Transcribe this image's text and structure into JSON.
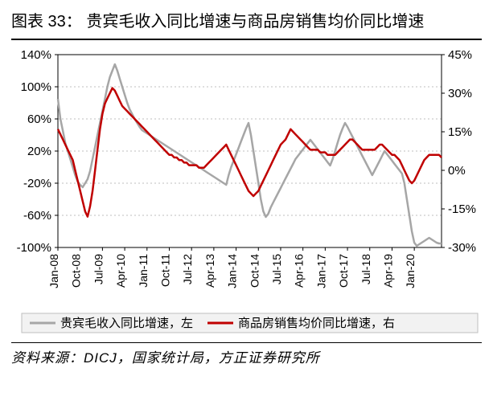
{
  "title": "图表 33：      贵宾毛收入同比增速与商品房销售均价同比增速",
  "source": "资料来源：DICJ，国家统计局，方正证券研究所",
  "chart": {
    "type": "line-dual-axis",
    "background_color": "#ffffff",
    "plot_border_color": "#000000",
    "grid_color": "#bfbfbf",
    "grid_dash": "2,3",
    "font_family": "Arial",
    "tick_fontsize": 15,
    "x_tick_fontsize": 14,
    "x_tick_rotation": -90,
    "line_width": 2.5,
    "left_axis": {
      "min": -100,
      "max": 140,
      "step": 40,
      "suffix": "%",
      "ticks": [
        -100,
        -60,
        -20,
        20,
        60,
        100,
        140
      ]
    },
    "right_axis": {
      "min": -30,
      "max": 45,
      "step": 15,
      "suffix": "%",
      "ticks": [
        -30,
        -15,
        0,
        15,
        30,
        45
      ]
    },
    "x_labels": [
      "Jan-08",
      "Oct-08",
      "Jul-09",
      "Apr-10",
      "Jan-11",
      "Oct-11",
      "Jul-12",
      "Apr-13",
      "Jan-14",
      "Oct-14",
      "Jul-15",
      "Apr-16",
      "Jan-17",
      "Oct-17",
      "Jul-18",
      "Apr-19",
      "Jan-20"
    ],
    "x_label_interval_months": 9,
    "n_points": 156,
    "legend": {
      "bg": "#f2f2f2",
      "border": "#bfbfbf",
      "items": [
        {
          "label": "贵宾毛收入同比增速，左",
          "color": "#a6a6a6"
        },
        {
          "label": "商品房销售均价同比增速，右",
          "color": "#c00000"
        }
      ]
    },
    "series": [
      {
        "name": "vip_rev_yoy_left",
        "color": "#a6a6a6",
        "axis": "left",
        "data": [
          85,
          60,
          45,
          30,
          20,
          10,
          0,
          -10,
          -18,
          -22,
          -25,
          -20,
          -15,
          -5,
          10,
          25,
          40,
          55,
          70,
          85,
          100,
          112,
          120,
          128,
          120,
          110,
          100,
          90,
          80,
          72,
          66,
          60,
          55,
          50,
          46,
          44,
          42,
          40,
          38,
          36,
          34,
          32,
          30,
          28,
          26,
          24,
          22,
          20,
          18,
          16,
          14,
          12,
          10,
          8,
          6,
          4,
          2,
          0,
          -2,
          -4,
          -6,
          -8,
          -10,
          -12,
          -14,
          -16,
          -18,
          -20,
          -22,
          -10,
          0,
          8,
          16,
          24,
          32,
          40,
          48,
          55,
          40,
          20,
          0,
          -20,
          -40,
          -55,
          -62,
          -58,
          -50,
          -44,
          -38,
          -32,
          -26,
          -20,
          -14,
          -8,
          -2,
          4,
          10,
          14,
          18,
          22,
          26,
          30,
          34,
          30,
          26,
          22,
          18,
          14,
          10,
          6,
          2,
          10,
          20,
          30,
          40,
          48,
          55,
          50,
          44,
          38,
          32,
          26,
          20,
          14,
          8,
          2,
          -4,
          -10,
          -4,
          2,
          8,
          14,
          20,
          16,
          12,
          8,
          4,
          0,
          -4,
          -8,
          -20,
          -40,
          -60,
          -80,
          -94,
          -98,
          -96,
          -94,
          -92,
          -90,
          -88,
          -90,
          -92,
          -94,
          -95,
          -95
        ]
      },
      {
        "name": "house_asp_yoy_right",
        "color": "#c00000",
        "axis": "right",
        "data": [
          16,
          14,
          12,
          10,
          8,
          6,
          4,
          0,
          -4,
          -8,
          -12,
          -16,
          -18,
          -14,
          -8,
          0,
          8,
          16,
          22,
          26,
          28,
          30,
          32,
          31,
          29,
          27,
          25,
          24,
          23,
          22,
          21,
          20,
          19,
          18,
          17,
          16,
          15,
          14,
          13,
          12,
          11,
          10,
          9,
          8,
          7,
          6,
          6,
          5,
          5,
          4,
          4,
          3,
          3,
          2,
          2,
          2,
          2,
          1,
          1,
          1,
          2,
          3,
          4,
          5,
          6,
          7,
          8,
          9,
          10,
          8,
          6,
          4,
          2,
          0,
          -2,
          -4,
          -6,
          -8,
          -9,
          -10,
          -9,
          -8,
          -6,
          -4,
          -2,
          0,
          2,
          4,
          6,
          8,
          10,
          11,
          12,
          14,
          16,
          15,
          14,
          13,
          12,
          11,
          10,
          9,
          8,
          8,
          8,
          8,
          7,
          7,
          7,
          6,
          6,
          6,
          6,
          7,
          8,
          9,
          10,
          11,
          12,
          12,
          11,
          10,
          9,
          8,
          8,
          8,
          8,
          8,
          8,
          9,
          10,
          10,
          9,
          8,
          7,
          6,
          6,
          5,
          4,
          2,
          0,
          -2,
          -4,
          -5,
          -4,
          -2,
          0,
          2,
          4,
          5,
          6,
          6,
          6,
          6,
          6,
          5
        ]
      }
    ]
  }
}
